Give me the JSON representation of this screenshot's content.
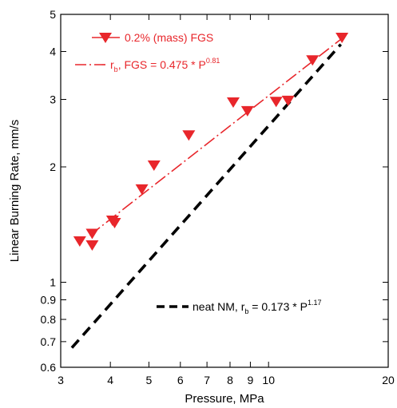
{
  "chart_data": {
    "type": "scatter",
    "title": "",
    "xlabel": "Pressure, MPa",
    "ylabel": "Linear Burning Rate, mm/s",
    "xscale": "log",
    "yscale": "log",
    "xlim": [
      3,
      20
    ],
    "ylim": [
      0.6,
      5
    ],
    "grid": false,
    "legend_placement": "top-left and bottom-right",
    "x_ticks": [
      3,
      4,
      5,
      6,
      7,
      8,
      9,
      10,
      20
    ],
    "x_tick_labels": [
      "3",
      "4",
      "5",
      "6",
      "7",
      "8",
      "9",
      "10",
      "20"
    ],
    "y_ticks": [
      0.6,
      0.7,
      0.8,
      0.9,
      1,
      2,
      3,
      4,
      5
    ],
    "y_tick_labels": [
      "0.6",
      "0.7",
      "0.8",
      "0.9",
      "1",
      "2",
      "3",
      "4",
      "5"
    ],
    "series": [
      {
        "name": "0.2% (mass) FGS",
        "kind": "markers",
        "marker": "triangle-down",
        "color": "#e8262b",
        "points": [
          [
            3.35,
            1.28
          ],
          [
            3.6,
            1.34
          ],
          [
            3.6,
            1.25
          ],
          [
            4.05,
            1.45
          ],
          [
            4.1,
            1.43
          ],
          [
            4.8,
            1.75
          ],
          [
            5.15,
            2.02
          ],
          [
            6.3,
            2.42
          ],
          [
            8.15,
            2.95
          ],
          [
            8.85,
            2.8
          ],
          [
            10.45,
            2.96
          ],
          [
            11.2,
            2.98
          ],
          [
            12.9,
            3.8
          ],
          [
            15.3,
            4.35
          ]
        ]
      },
      {
        "name": "r_b, FGS = 0.475 * P^0.81",
        "kind": "fit-line",
        "color": "#e8262b",
        "dash": "dash-dot",
        "coefficient": 0.475,
        "exponent": 0.81,
        "x_range": [
          3.55,
          15.3
        ],
        "legend": {
          "prefix": "r",
          "sub": "b",
          "middle": ", FGS = 0.475 * P",
          "sup": "0.81"
        }
      },
      {
        "name": "neat NM, r_b = 0.173 * P^1.17",
        "kind": "fit-line",
        "color": "#000000",
        "dash": "dashed",
        "coefficient": 0.173,
        "exponent": 1.17,
        "x_range": [
          3.2,
          15.2
        ],
        "legend": {
          "prefix": "neat NM, r",
          "sub": "b",
          "middle": " = 0.173 * P",
          "sup": "1.17"
        }
      }
    ]
  }
}
